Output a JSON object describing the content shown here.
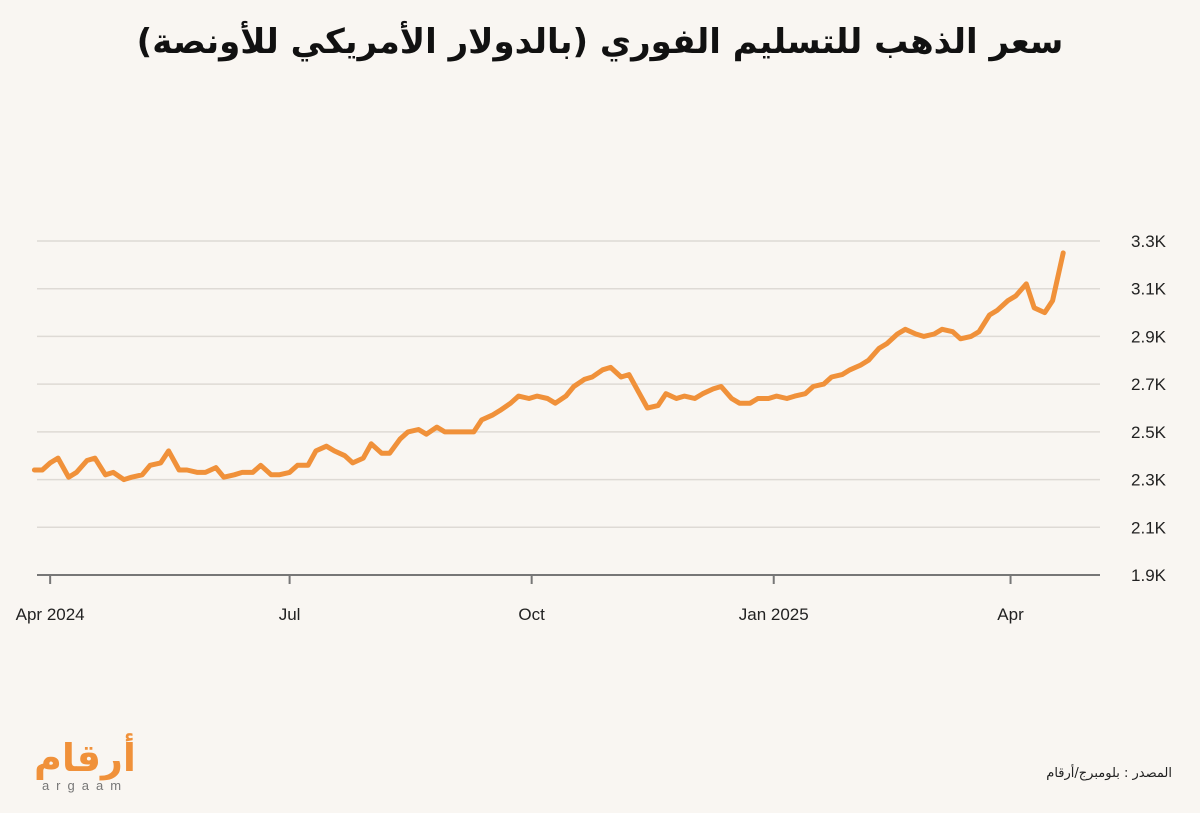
{
  "title": "سعر الذهب للتسليم الفوري (بالدولار الأمريكي للأونصة)",
  "source": "المصدر : بلومبرج/أرقام",
  "logo": {
    "arabic": "أرقام",
    "latin": "argaam"
  },
  "colors": {
    "line": "#f0913a",
    "grid": "#dedad5",
    "axis": "#777777",
    "background": "#f9f6f2"
  },
  "chart_data": {
    "type": "line",
    "title": "سعر الذهب للتسليم الفوري (بالدولار الأمريكي للأونصة)",
    "xlabel": "",
    "ylabel": "",
    "ylim": [
      1900,
      3300
    ],
    "xlim": [
      "2024-03-27",
      "2025-05-05"
    ],
    "grid": true,
    "y_axis_position": "right",
    "y_ticks": [
      1900,
      2100,
      2300,
      2500,
      2700,
      2900,
      3100,
      3300
    ],
    "y_tick_labels": [
      "1.9K",
      "2.1K",
      "2.3K",
      "2.5K",
      "2.7K",
      "2.9K",
      "3.1K",
      "3.3K"
    ],
    "x_ticks": [
      "2024-04-01",
      "2024-07-01",
      "2024-10-01",
      "2025-01-01",
      "2025-04-01"
    ],
    "x_tick_labels": [
      "Apr 2024",
      "Jul",
      "Oct",
      "Jan 2025",
      "Apr"
    ],
    "series": [
      {
        "x": [
          "2024-03-26",
          "2024-03-29",
          "2024-04-01",
          "2024-04-04",
          "2024-04-08",
          "2024-04-11",
          "2024-04-15",
          "2024-04-18",
          "2024-04-22",
          "2024-04-25",
          "2024-04-29",
          "2024-05-02",
          "2024-05-06",
          "2024-05-09",
          "2024-05-13",
          "2024-05-16",
          "2024-05-20",
          "2024-05-23",
          "2024-05-27",
          "2024-05-30",
          "2024-06-03",
          "2024-06-06",
          "2024-06-10",
          "2024-06-13",
          "2024-06-17",
          "2024-06-20",
          "2024-06-24",
          "2024-06-27",
          "2024-07-01",
          "2024-07-04",
          "2024-07-08",
          "2024-07-11",
          "2024-07-15",
          "2024-07-18",
          "2024-07-22",
          "2024-07-25",
          "2024-07-29",
          "2024-08-01",
          "2024-08-05",
          "2024-08-08",
          "2024-08-12",
          "2024-08-15",
          "2024-08-19",
          "2024-08-22",
          "2024-08-26",
          "2024-08-29",
          "2024-09-02",
          "2024-09-05",
          "2024-09-09",
          "2024-09-12",
          "2024-09-16",
          "2024-09-19",
          "2024-09-23",
          "2024-09-26",
          "2024-09-30",
          "2024-10-03",
          "2024-10-07",
          "2024-10-10",
          "2024-10-14",
          "2024-10-17",
          "2024-10-21",
          "2024-10-24",
          "2024-10-28",
          "2024-10-31",
          "2024-11-04",
          "2024-11-07",
          "2024-11-11",
          "2024-11-14",
          "2024-11-18",
          "2024-11-21",
          "2024-11-25",
          "2024-11-28",
          "2024-12-02",
          "2024-12-05",
          "2024-12-09",
          "2024-12-12",
          "2024-12-16",
          "2024-12-19",
          "2024-12-23",
          "2024-12-26",
          "2024-12-30",
          "2025-01-02",
          "2025-01-06",
          "2025-01-09",
          "2025-01-13",
          "2025-01-16",
          "2025-01-20",
          "2025-01-23",
          "2025-01-27",
          "2025-01-30",
          "2025-02-03",
          "2025-02-06",
          "2025-02-10",
          "2025-02-13",
          "2025-02-17",
          "2025-02-20",
          "2025-02-24",
          "2025-02-27",
          "2025-03-03",
          "2025-03-06",
          "2025-03-10",
          "2025-03-13",
          "2025-03-17",
          "2025-03-20",
          "2025-03-24",
          "2025-03-27",
          "2025-03-31",
          "2025-04-03",
          "2025-04-07",
          "2025-04-10",
          "2025-04-14",
          "2025-04-17",
          "2025-04-21"
        ],
        "values": [
          2340,
          2340,
          2370,
          2390,
          2310,
          2330,
          2380,
          2390,
          2320,
          2330,
          2300,
          2310,
          2320,
          2360,
          2370,
          2420,
          2340,
          2340,
          2330,
          2330,
          2350,
          2310,
          2320,
          2330,
          2330,
          2360,
          2320,
          2320,
          2330,
          2360,
          2360,
          2420,
          2440,
          2420,
          2400,
          2370,
          2390,
          2450,
          2410,
          2410,
          2470,
          2500,
          2510,
          2490,
          2520,
          2500,
          2500,
          2500,
          2500,
          2550,
          2570,
          2590,
          2620,
          2650,
          2640,
          2650,
          2640,
          2620,
          2650,
          2690,
          2720,
          2730,
          2760,
          2770,
          2730,
          2740,
          2660,
          2600,
          2610,
          2660,
          2640,
          2650,
          2640,
          2660,
          2680,
          2690,
          2640,
          2620,
          2620,
          2640,
          2640,
          2650,
          2640,
          2650,
          2660,
          2690,
          2700,
          2730,
          2740,
          2760,
          2780,
          2800,
          2850,
          2870,
          2910,
          2930,
          2910,
          2900,
          2910,
          2930,
          2920,
          2890,
          2900,
          2920,
          2990,
          3010,
          3050,
          3070,
          3120,
          3020,
          3000,
          3050,
          3250
        ]
      }
    ]
  }
}
